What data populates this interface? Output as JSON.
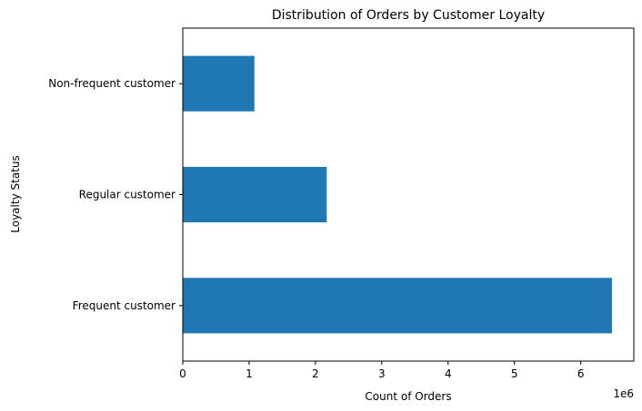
{
  "chart_data": {
    "type": "bar",
    "orientation": "horizontal",
    "title": "Distribution of Orders by Customer Loyalty",
    "xlabel": "Count of Orders",
    "ylabel": "Loyalty Status",
    "x_offset_label": "1e6",
    "categories": [
      "Frequent customer",
      "Regular customer",
      "Non-frequent customer"
    ],
    "values": [
      6470000,
      2170000,
      1080000
    ],
    "xlim": [
      0,
      6800000
    ],
    "xticks": [
      0,
      1000000,
      2000000,
      3000000,
      4000000,
      5000000,
      6000000
    ],
    "xtick_labels": [
      "0",
      "1",
      "2",
      "3",
      "4",
      "5",
      "6"
    ],
    "bar_color": "#1f77b4",
    "grid": false,
    "legend": "none"
  }
}
